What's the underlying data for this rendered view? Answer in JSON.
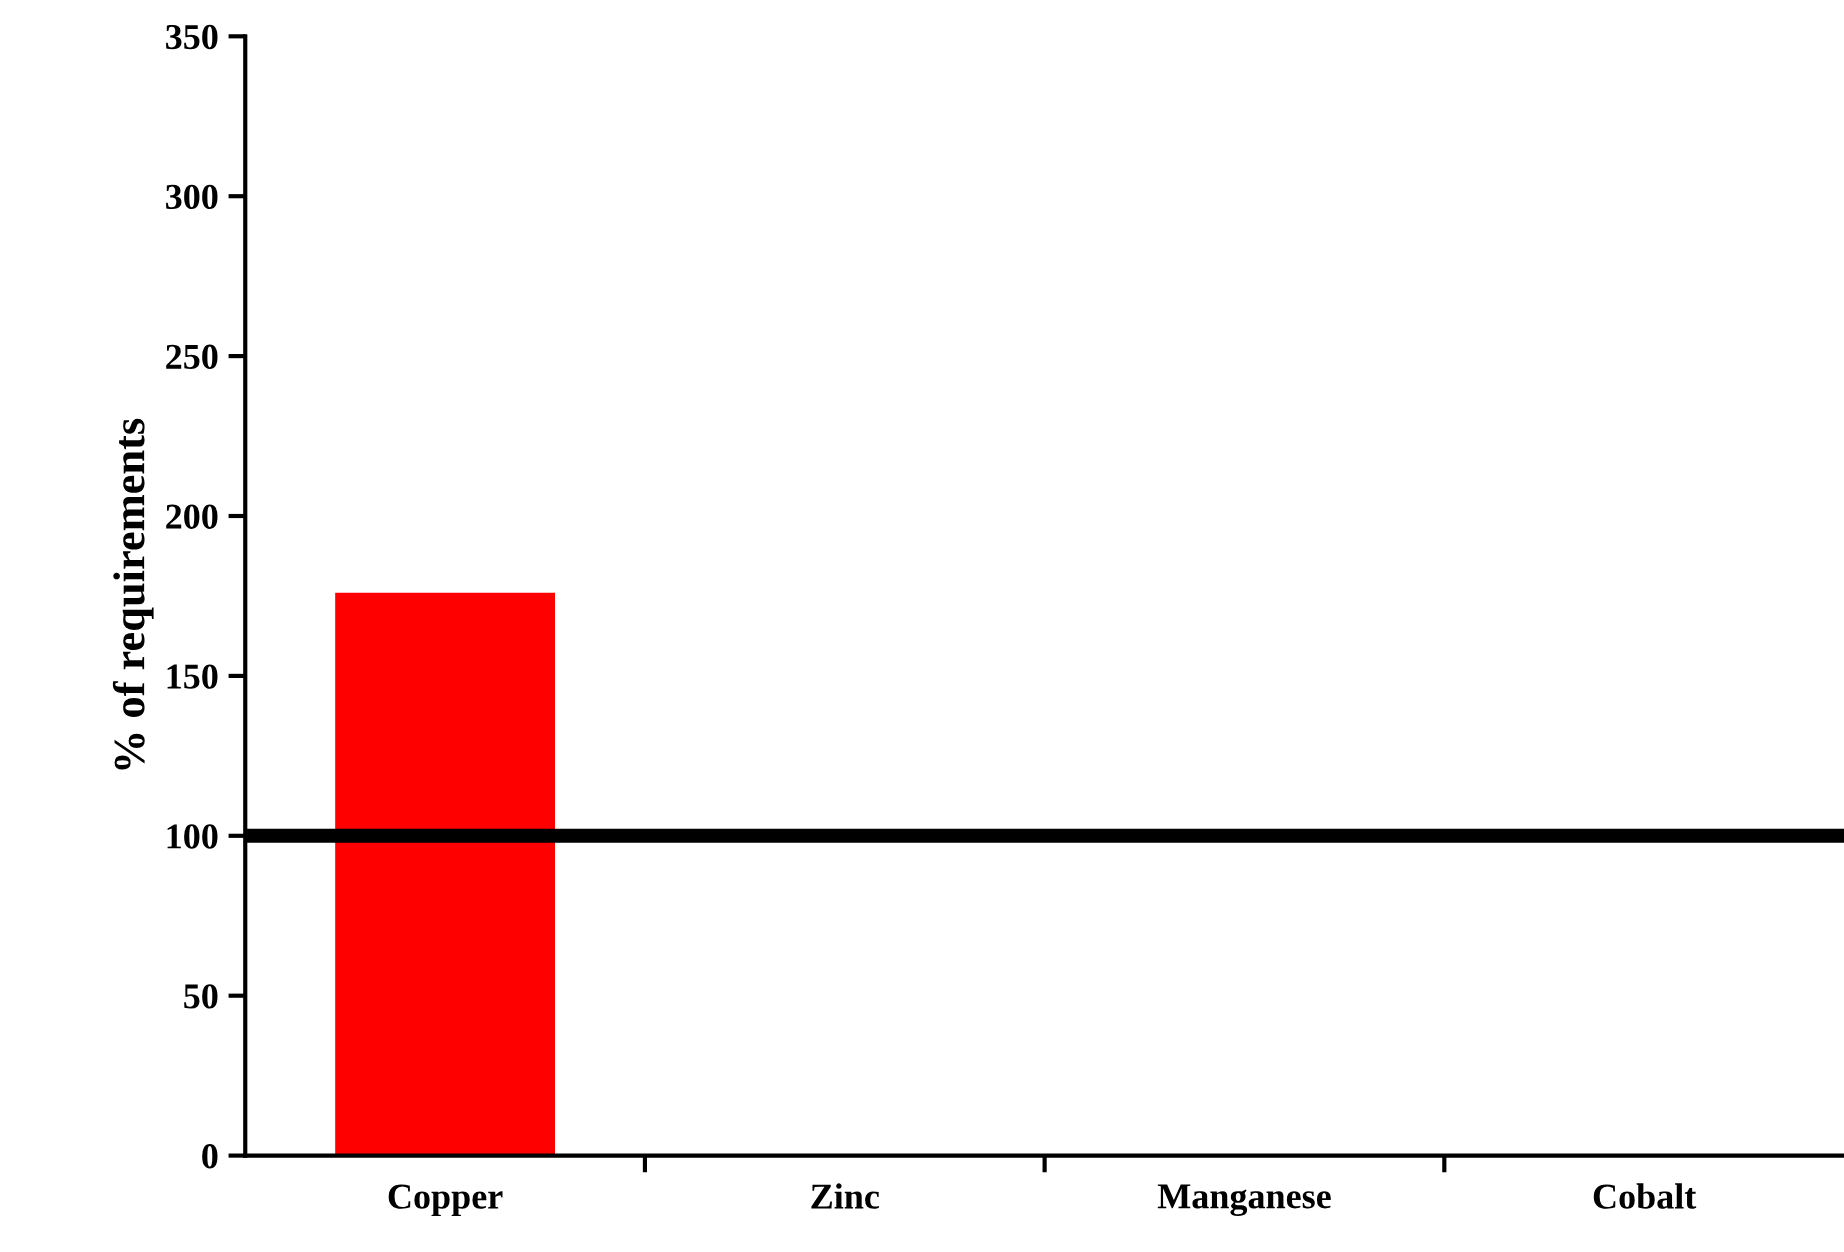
{
  "chart_data": {
    "type": "bar",
    "ylabel": "% of requirements",
    "categories": [
      "Copper",
      "Zinc",
      "Manganese",
      "Cobalt"
    ],
    "values": [
      176,
      null,
      null,
      null
    ],
    "color": "#ff0000",
    "ylim": [
      0,
      350
    ],
    "yticks": [
      0,
      50,
      100,
      150,
      200,
      250,
      300,
      350
    ],
    "grid": false,
    "ref_lines": [
      {
        "axis": "y",
        "value": 100,
        "color": "#000000",
        "line_style": "solid"
      }
    ]
  }
}
